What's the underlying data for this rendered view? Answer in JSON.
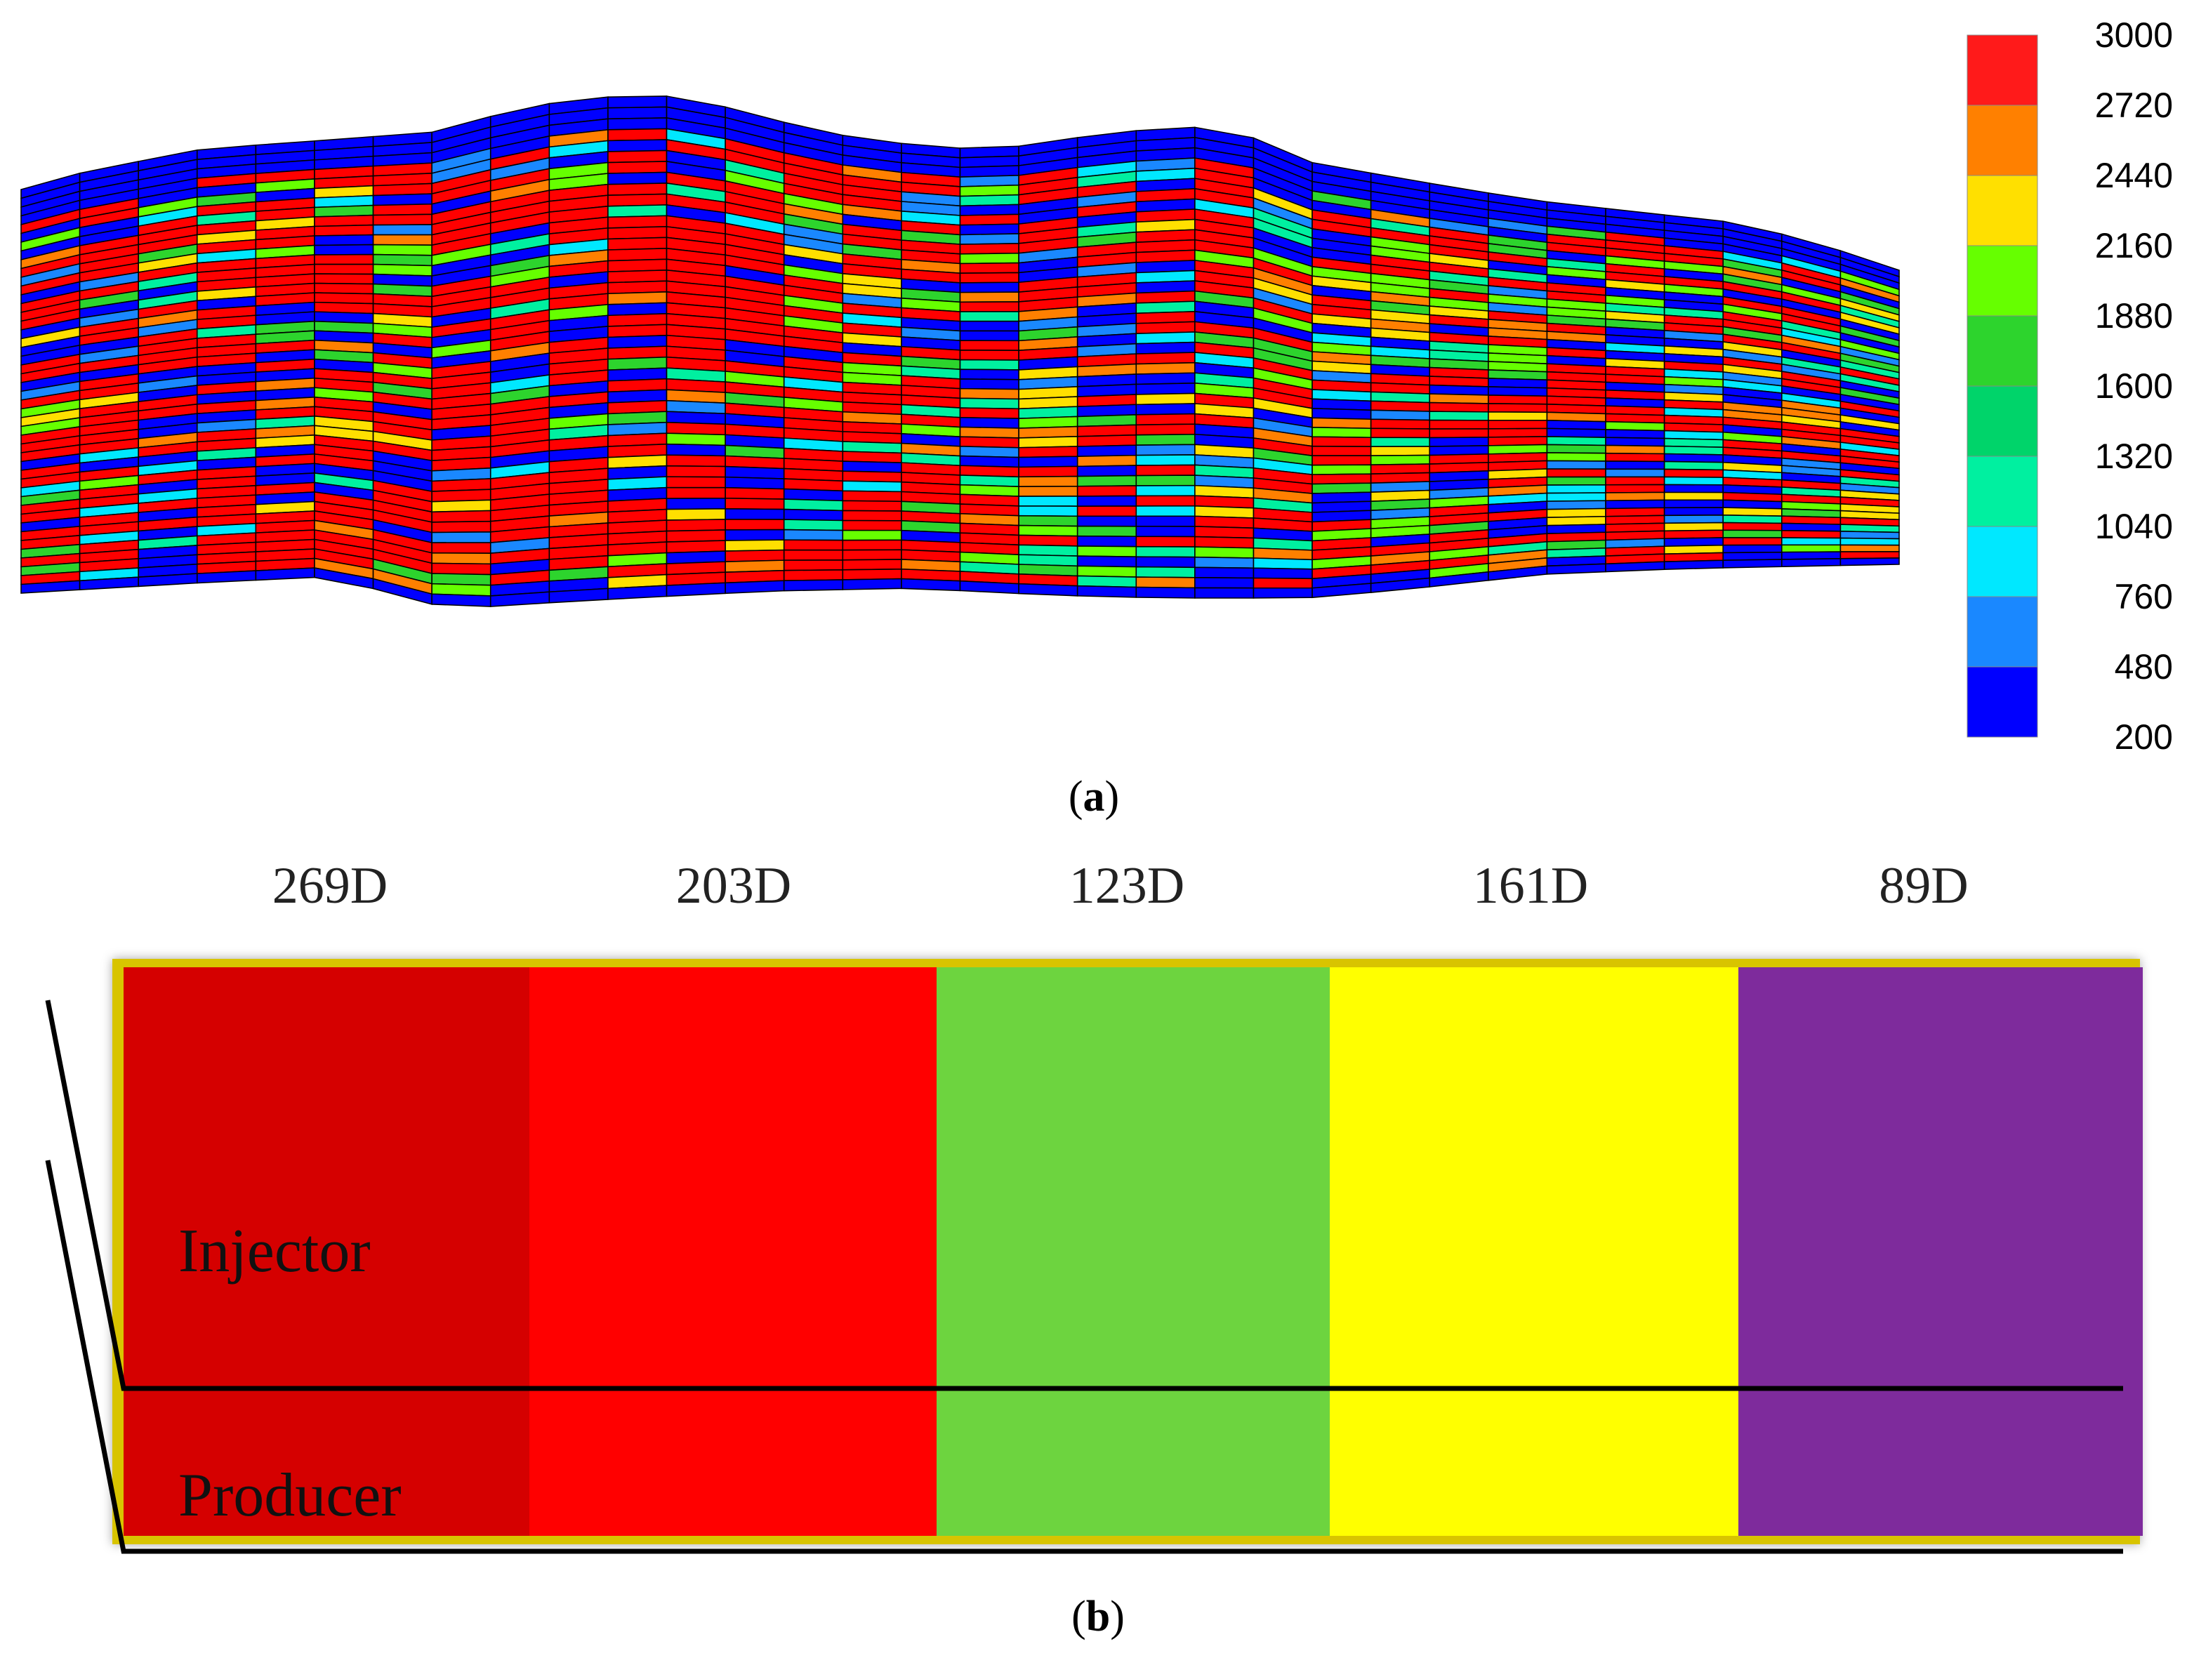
{
  "panel_a": {
    "caption": "a",
    "colorbar": {
      "ticks": [
        "3000",
        "2720",
        "2440",
        "2160",
        "1880",
        "1600",
        "1320",
        "1040",
        "760",
        "480",
        "200"
      ],
      "colors": [
        "#ff1a1a",
        "#ff2200",
        "#ff8000",
        "#ffe000",
        "#66ff00",
        "#2dd42d",
        "#1ec81e",
        "#00f0a0",
        "#00e8ff",
        "#1a88ff",
        "#0000ff"
      ]
    },
    "grid": {
      "columns": 32,
      "layers": 46,
      "outline_color": "#000000",
      "palette": [
        "#0000ff",
        "#1a88ff",
        "#00e8ff",
        "#00f0a0",
        "#2dd42d",
        "#66ff00",
        "#ffe000",
        "#ff8000",
        "#ff0000"
      ]
    }
  },
  "panel_b": {
    "caption": "b",
    "durations": [
      "269D",
      "203D",
      "123D",
      "161D",
      "89D"
    ],
    "bands": [
      {
        "name": "269D",
        "color": "#d50000"
      },
      {
        "name": "203D",
        "color": "#ff0000"
      },
      {
        "name": "123D",
        "color": "#6dd43f"
      },
      {
        "name": "161D",
        "color": "#ffff00"
      },
      {
        "name": "89D",
        "color": "#7e2b9c"
      }
    ],
    "wells": {
      "injector_label": "Injector",
      "producer_label": "Producer"
    }
  }
}
